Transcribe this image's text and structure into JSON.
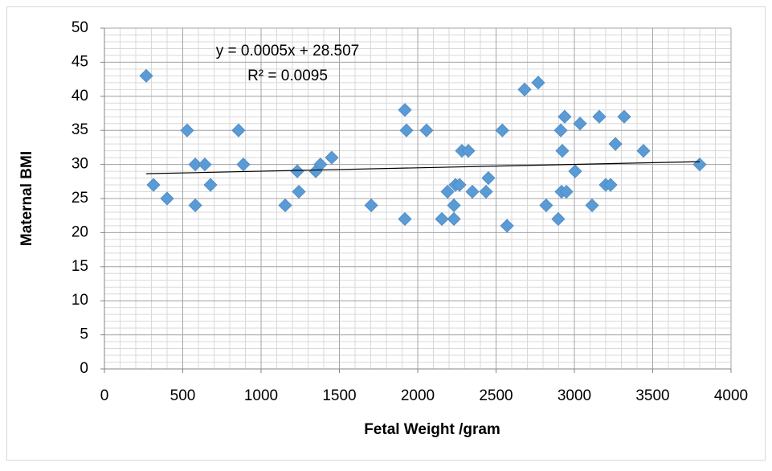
{
  "chart_data": {
    "type": "scatter",
    "xlabel": "Fetal Weight /gram",
    "ylabel": "Maternal BMI",
    "xlim": [
      0,
      4000
    ],
    "xticks": [
      0,
      500,
      1000,
      1500,
      2000,
      2500,
      3000,
      3500,
      4000
    ],
    "ylim": [
      0,
      50
    ],
    "yticks": [
      0,
      5,
      10,
      15,
      20,
      25,
      30,
      35,
      40,
      45,
      50
    ],
    "grid": true,
    "minor_grid": {
      "x": 100,
      "y": 1
    },
    "color": "#5b9bd5",
    "trendline": {
      "slope": 0.0005,
      "intercept": 28.507,
      "equation": "y = 0.0005x + 28.507",
      "r2": "R² = 0.0095"
    },
    "x": [
      267,
      313,
      400,
      528,
      580,
      580,
      641,
      677,
      856,
      887,
      1154,
      1231,
      1241,
      1349,
      1379,
      1451,
      1703,
      1918,
      1918,
      1928,
      2056,
      2154,
      2190,
      2231,
      2231,
      2241,
      2267,
      2282,
      2323,
      2349,
      2436,
      2451,
      2540,
      2570,
      2682,
      2769,
      2820,
      2897,
      2913,
      2923,
      2918,
      2938,
      2949,
      3005,
      3036,
      3113,
      3159,
      3200,
      3231,
      3262,
      3318,
      3441,
      3800
    ],
    "values": [
      43,
      27,
      25,
      35,
      30,
      24,
      30,
      27,
      35,
      30,
      24,
      29,
      26,
      29,
      30,
      31,
      24,
      22,
      38,
      35,
      35,
      22,
      26,
      22,
      24,
      27,
      27,
      32,
      32,
      26,
      26,
      28,
      35,
      21,
      41,
      42,
      24,
      22,
      35,
      32,
      26,
      37,
      26,
      29,
      36,
      24,
      37,
      27,
      27,
      33,
      37,
      32,
      30
    ]
  }
}
